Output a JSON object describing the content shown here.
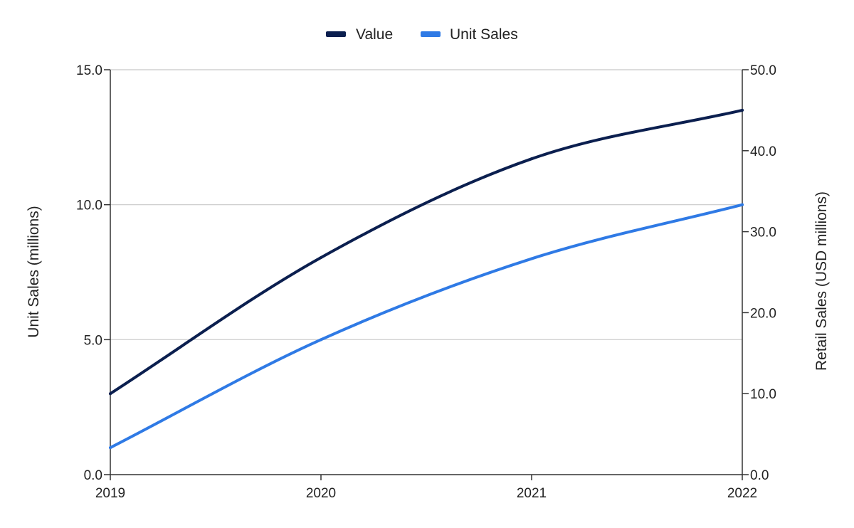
{
  "chart_data": {
    "type": "line",
    "categories": [
      "2019",
      "2020",
      "2021",
      "2022"
    ],
    "x_ticks": [
      "2019",
      "2020",
      "2021",
      "2022"
    ],
    "series": [
      {
        "name": "Value",
        "axis": "right",
        "color": "#0b1f4f",
        "values": [
          10.0,
          26.8,
          39.0,
          45.0
        ]
      },
      {
        "name": "Unit Sales",
        "axis": "left",
        "color": "#2f7ae5",
        "values": [
          1.0,
          5.0,
          8.0,
          10.0
        ]
      }
    ],
    "y_left": {
      "label": "Unit Sales (millions)",
      "lim": [
        0,
        15
      ],
      "ticks": [
        "0.0",
        "5.0",
        "10.0",
        "15.0"
      ]
    },
    "y_right": {
      "label": "Retail Sales (USD millions)",
      "lim": [
        0,
        50
      ],
      "ticks": [
        "0.0",
        "10.0",
        "20.0",
        "30.0",
        "40.0",
        "50.0"
      ]
    },
    "grid": true,
    "legend_position": "top-center"
  }
}
